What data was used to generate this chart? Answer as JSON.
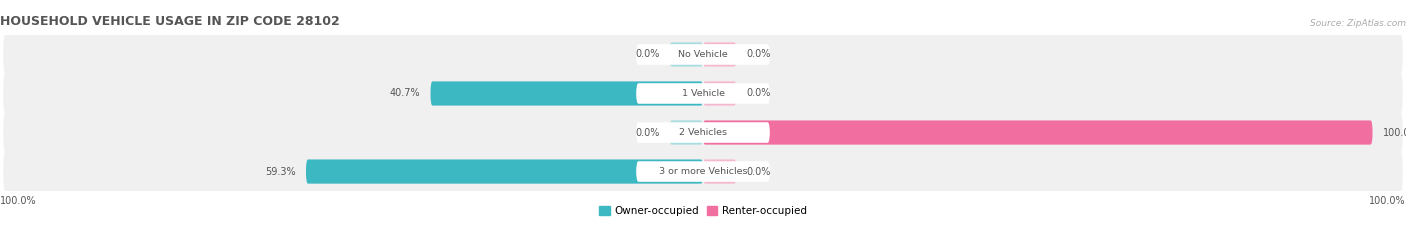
{
  "title": "HOUSEHOLD VEHICLE USAGE IN ZIP CODE 28102",
  "source": "Source: ZipAtlas.com",
  "categories": [
    "No Vehicle",
    "1 Vehicle",
    "2 Vehicles",
    "3 or more Vehicles"
  ],
  "owner_values": [
    0.0,
    40.7,
    0.0,
    59.3
  ],
  "renter_values": [
    0.0,
    0.0,
    100.0,
    0.0
  ],
  "owner_color": "#3cb8c2",
  "owner_color_light": "#a8dde0",
  "renter_color": "#f06fa0",
  "renter_color_light": "#f5b8d0",
  "row_bg_color": "#f0f0f0",
  "title_color": "#555555",
  "label_color": "#555555",
  "source_color": "#aaaaaa",
  "axis_label_left": "100.0%",
  "axis_label_right": "100.0%",
  "legend_owner": "Owner-occupied",
  "legend_renter": "Renter-occupied",
  "stub_size": 5.0,
  "xlim": 105
}
